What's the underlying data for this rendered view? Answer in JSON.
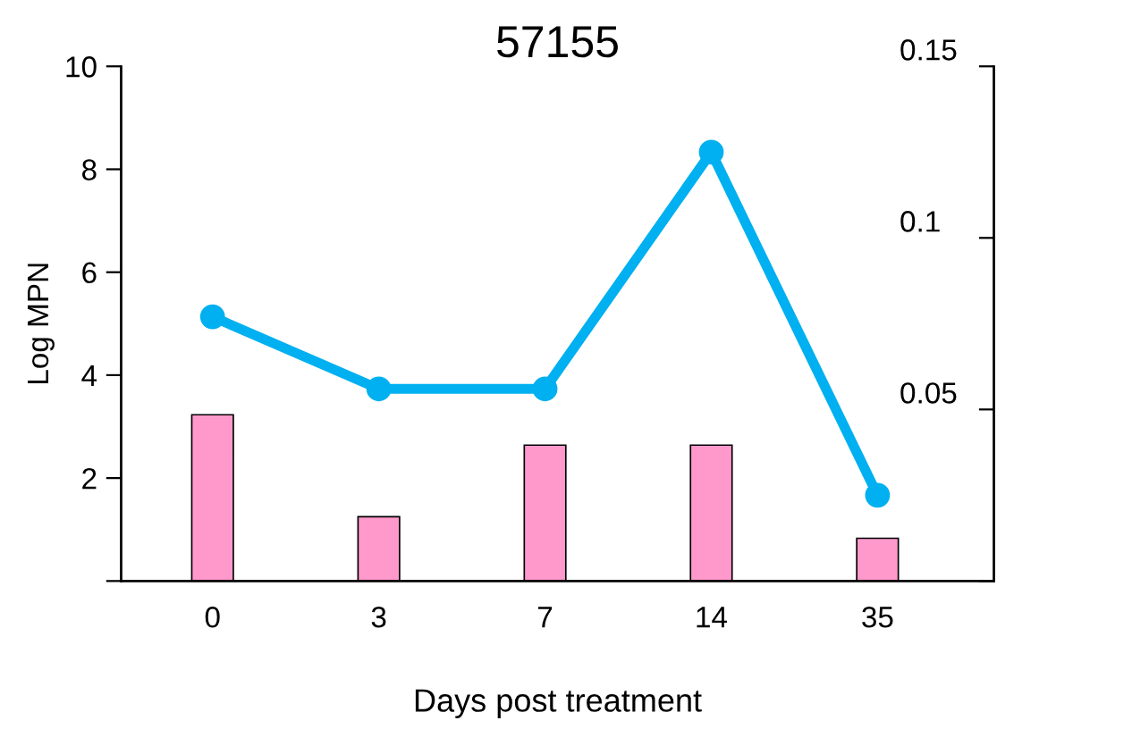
{
  "chart_data": {
    "type": "bar",
    "title": "57155",
    "xlabel": "Days post treatment",
    "ylabel": "Log MPN",
    "categories": [
      "0",
      "3",
      "7",
      "14",
      "35"
    ],
    "series": [
      {
        "color": "#ff99cc",
        "values": [
          3.23,
          1.25,
          2.64,
          2.64,
          0.83
        ]
      },
      {
        "type": "line",
        "axis": "y2",
        "color": "#00b0f0",
        "values": [
          0.077,
          0.056,
          0.056,
          0.125,
          0.025
        ]
      }
    ],
    "ylim": [
      0,
      10
    ],
    "yticks": [
      {
        "value": 0,
        "label": null
      },
      2,
      4,
      6,
      8,
      10
    ],
    "y2lim": [
      0,
      0.15
    ],
    "y2ticks": [
      {
        "value": 0,
        "label": null
      },
      0.05,
      0.1,
      0.15
    ],
    "marker": "circle",
    "line_style": "solid",
    "grid": false,
    "legend": false
  }
}
